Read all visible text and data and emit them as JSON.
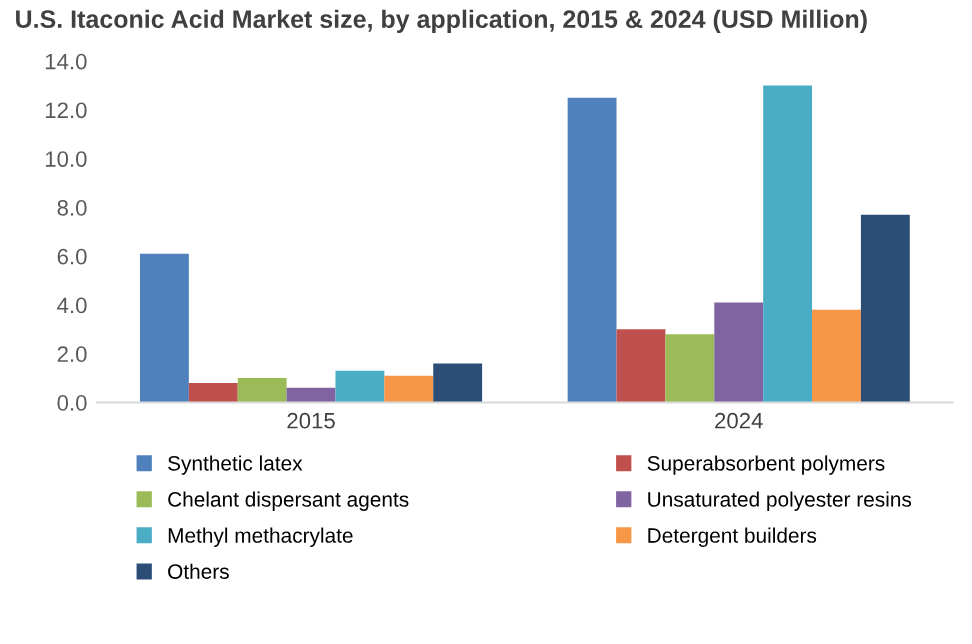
{
  "chart_data": {
    "type": "bar",
    "title": "U.S. Itaconic Acid Market size, by application, 2015 & 2024 (USD Million)",
    "categories": [
      "2015",
      "2024"
    ],
    "series": [
      {
        "name": "Synthetic latex",
        "color": "#4f81bd",
        "values": [
          6.1,
          12.5
        ]
      },
      {
        "name": "Superabsorbent polymers",
        "color": "#c0504d",
        "values": [
          0.8,
          3.0
        ]
      },
      {
        "name": "Chelant dispersant agents",
        "color": "#9bbb59",
        "values": [
          1.0,
          2.8
        ]
      },
      {
        "name": "Unsaturated polyester resins",
        "color": "#8064a2",
        "values": [
          0.6,
          4.1
        ]
      },
      {
        "name": "Methyl methacrylate",
        "color": "#4bacc6",
        "values": [
          1.3,
          13.0
        ]
      },
      {
        "name": "Detergent builders",
        "color": "#f79646",
        "values": [
          1.1,
          3.8
        ]
      },
      {
        "name": "Others",
        "color": "#2c4d75",
        "values": [
          1.6,
          7.7
        ]
      }
    ],
    "ylim": [
      0,
      14
    ],
    "yticks": [
      {
        "value": 0,
        "label": "0.0"
      },
      {
        "value": 2,
        "label": "2.0"
      },
      {
        "value": 4,
        "label": "4.0"
      },
      {
        "value": 6,
        "label": "6.0"
      },
      {
        "value": 8,
        "label": "8.0"
      },
      {
        "value": 10,
        "label": "10.0"
      },
      {
        "value": 12,
        "label": "12.0"
      },
      {
        "value": 14,
        "label": "14.0"
      }
    ],
    "grid": false,
    "legend": "bottom"
  }
}
